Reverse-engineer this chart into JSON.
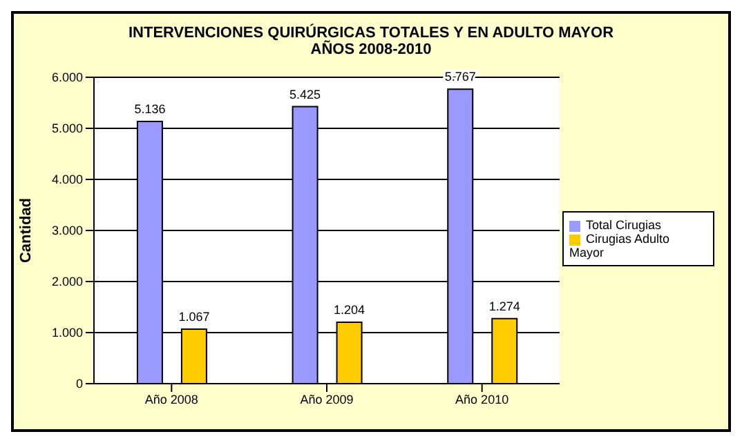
{
  "chart_data": {
    "type": "bar",
    "title": "INTERVENCIONES QUIRÚRGICAS TOTALES Y EN ADULTO MAYOR",
    "subtitle": "AÑOS 2008-2010",
    "ylabel": "Cantidad",
    "categories": [
      "Año 2008",
      "Año 2009",
      "Año 2010"
    ],
    "series": [
      {
        "name": "Total Cirugias",
        "color": "#9999ff",
        "values": [
          5136,
          5425,
          5767
        ],
        "value_labels": [
          "5.136",
          "5.425",
          "5.767"
        ]
      },
      {
        "name": "Cirugias Adulto Mayor",
        "color": "#ffcc00",
        "values": [
          1067,
          1204,
          1274
        ],
        "value_labels": [
          "1.067",
          "1.204",
          "1.274"
        ]
      }
    ],
    "ylim": [
      0,
      6000
    ],
    "yticks": [
      {
        "value": 0,
        "label": "0"
      },
      {
        "value": 1000,
        "label": "1.000"
      },
      {
        "value": 2000,
        "label": "2.000"
      },
      {
        "value": 3000,
        "label": "3.000"
      },
      {
        "value": 4000,
        "label": "4.000"
      },
      {
        "value": 5000,
        "label": "5.000"
      },
      {
        "value": 6000,
        "label": "6.000"
      }
    ],
    "grid": "y",
    "legend": "right"
  }
}
